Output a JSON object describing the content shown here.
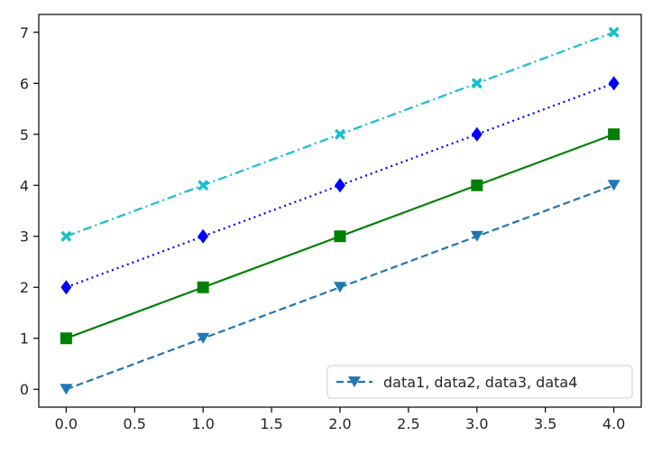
{
  "chart_data": {
    "type": "line",
    "x": [
      0,
      1,
      2,
      3,
      4
    ],
    "xlim": [
      -0.2,
      4.2
    ],
    "ylim": [
      -0.35,
      7.35
    ],
    "xticks": [
      0.0,
      0.5,
      1.0,
      1.5,
      2.0,
      2.5,
      3.0,
      3.5,
      4.0
    ],
    "xtick_labels": [
      "0.0",
      "0.5",
      "1.0",
      "1.5",
      "2.0",
      "2.5",
      "3.0",
      "3.5",
      "4.0"
    ],
    "yticks": [
      0,
      1,
      2,
      3,
      4,
      5,
      6,
      7
    ],
    "ytick_labels": [
      "0",
      "1",
      "2",
      "3",
      "4",
      "5",
      "6",
      "7"
    ],
    "grid": false,
    "legend": {
      "location": "bottom-right",
      "entries": [
        "data1, data2, data3, data4"
      ]
    },
    "series": [
      {
        "values": [
          0,
          1,
          2,
          3,
          4
        ],
        "color": "#1f77b4",
        "linestyle": "dashed",
        "marker": "triangle-down"
      },
      {
        "values": [
          1,
          2,
          3,
          4,
          5
        ],
        "color": "#008000",
        "linestyle": "solid",
        "marker": "square"
      },
      {
        "values": [
          2,
          3,
          4,
          5,
          6
        ],
        "color": "#0000ff",
        "linestyle": "dotted",
        "marker": "diamond"
      },
      {
        "values": [
          3,
          4,
          5,
          6,
          7
        ],
        "color": "#17becf",
        "linestyle": "dashdot",
        "marker": "x-filled"
      }
    ]
  }
}
